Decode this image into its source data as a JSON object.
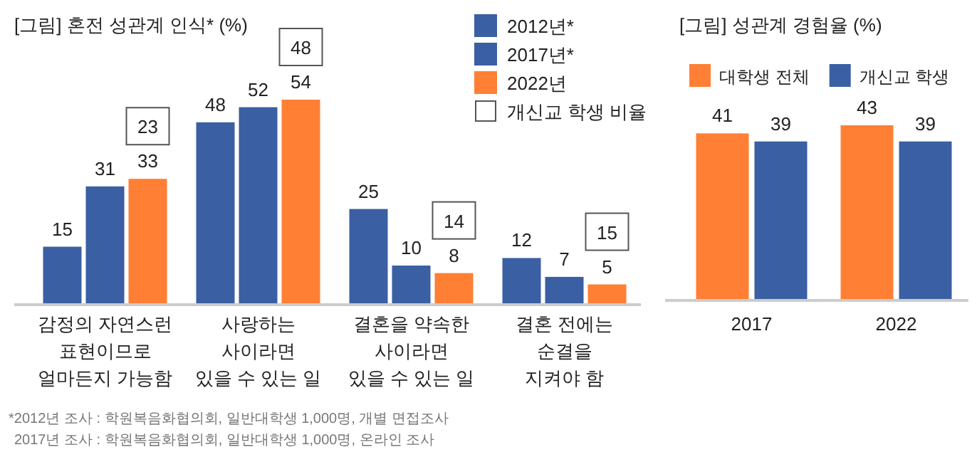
{
  "chart_data": [
    {
      "type": "bar",
      "title": "[그림] 혼전 성관계 인식* (%)",
      "categories": [
        "감정의 자연스런\n표현이므로\n얼마든지 가능함",
        "사랑하는\n사이라면\n있을 수 있는 일",
        "결혼을 약속한\n사이라면\n있을 수 있는 일",
        "결혼 전에는\n순결을\n지켜야 함"
      ],
      "series": [
        {
          "name": "2012년*",
          "color": "#3a5fa2",
          "values": [
            15,
            48,
            25,
            12
          ]
        },
        {
          "name": "2017년*",
          "color": "#3a5fa2",
          "values": [
            31,
            52,
            10,
            7
          ]
        },
        {
          "name": "2022년",
          "color": "#ff7f34",
          "values": [
            33,
            54,
            8,
            5
          ]
        }
      ],
      "data_labels": true,
      "legend": "top right",
      "annotations": [
        "23",
        "48",
        "14",
        "15",
        "개신교 학생 비율",
        "*2012년 조사 : 학원복음화협의회, 일반대학생 1,000명, 개별 면접조사",
        "2017년 조사 : 학원복음화협의회, 일반대학생 1,000명, 온라인 조사"
      ]
    },
    {
      "type": "bar",
      "title": "[그림] 성관계 경험율 (%)",
      "categories": [
        "2017",
        "2022"
      ],
      "series": [
        {
          "name": "대학생 전체",
          "color": "#ff7f34",
          "values": [
            41,
            43
          ]
        },
        {
          "name": "개신교 학생",
          "color": "#3a5fa2",
          "values": [
            39,
            39
          ]
        }
      ],
      "data_labels": true,
      "legend": "top"
    }
  ]
}
